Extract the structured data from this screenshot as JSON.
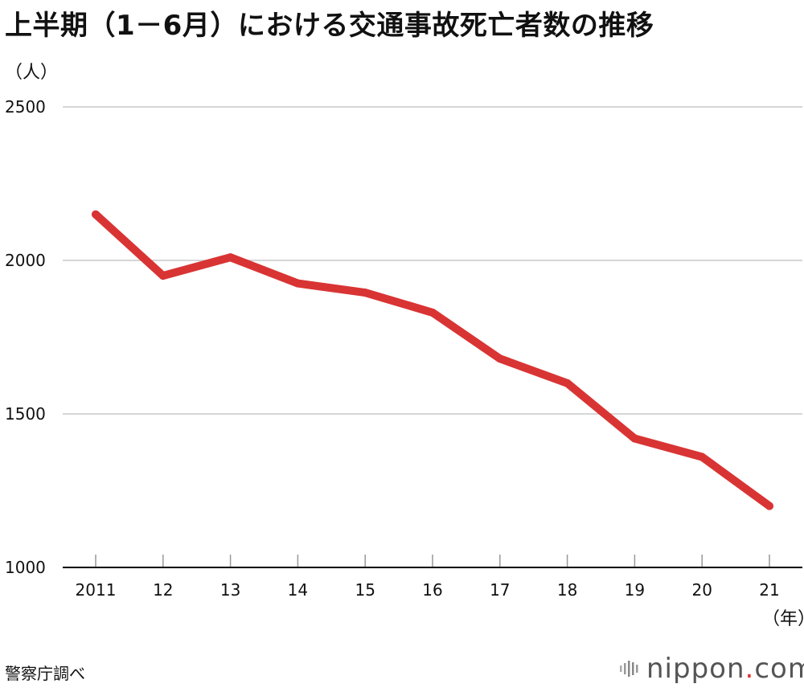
{
  "header": {
    "title": "上半期（1－6月）における交通事故死亡者数の推移",
    "y_unit": "（人）",
    "x_unit": "（年）"
  },
  "footer": {
    "source": "警察庁調べ",
    "brand_name": "nippon",
    "brand_dot": ".",
    "brand_tld": "com"
  },
  "colors": {
    "line": "#d93434",
    "grid": "#c8c8c8",
    "brand_dot": "#e03030"
  },
  "chart_data": {
    "type": "line",
    "title": "上半期（1－6月）における交通事故死亡者数の推移",
    "xlabel": "（年）",
    "ylabel": "（人）",
    "categories": [
      "2011",
      "12",
      "13",
      "14",
      "15",
      "16",
      "17",
      "18",
      "19",
      "20",
      "21"
    ],
    "series": [
      {
        "values": [
          2150,
          1950,
          2010,
          1925,
          1895,
          1830,
          1680,
          1600,
          1420,
          1360,
          1200
        ]
      }
    ],
    "yticks": [
      1000,
      1500,
      2000,
      2500
    ],
    "ylim": [
      1000,
      2500
    ],
    "grid": true,
    "legend": "none"
  }
}
